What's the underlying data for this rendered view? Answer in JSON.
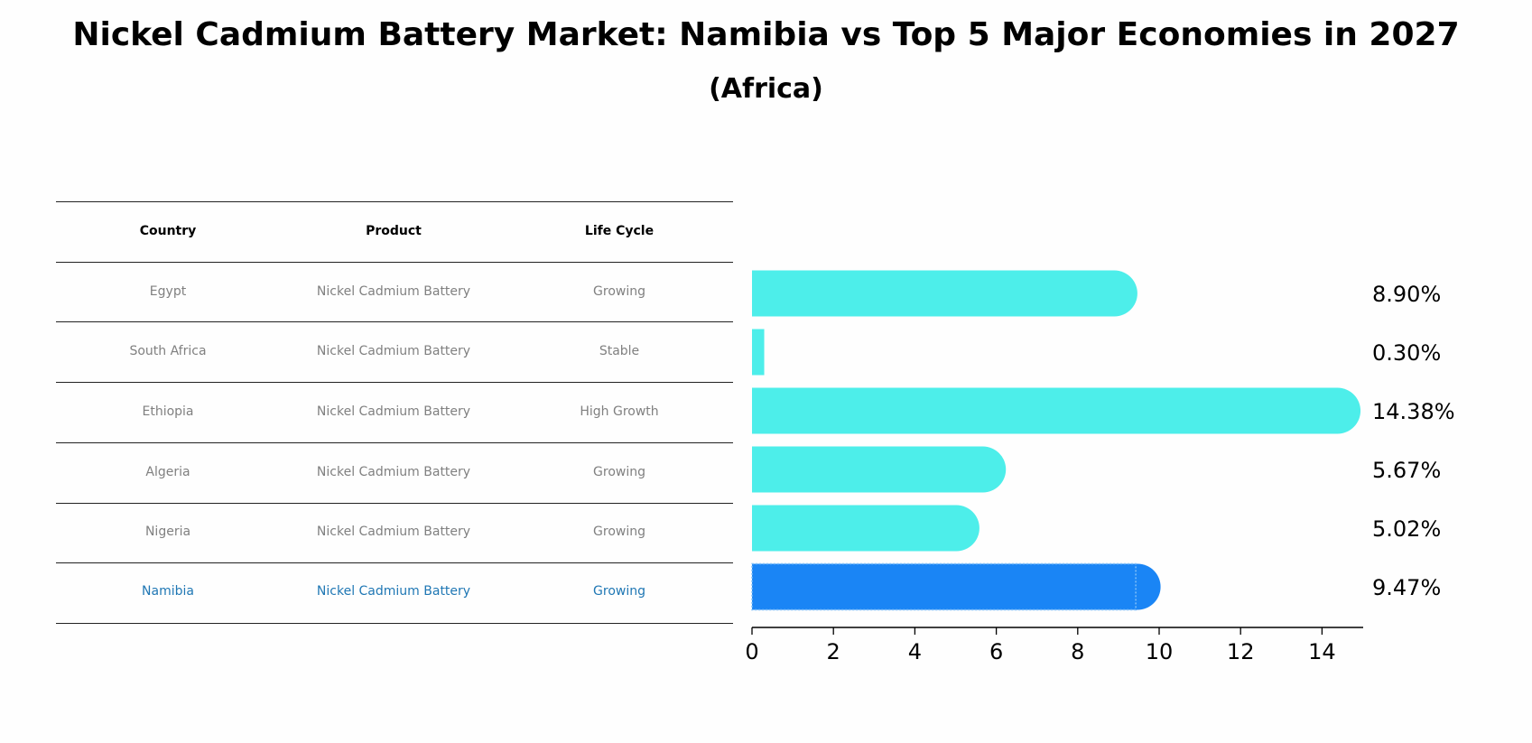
{
  "title": "Nickel Cadmium Battery Market: Namibia vs Top 5 Major Economies in 2027",
  "subtitle": "(Africa)",
  "table": {
    "headers": [
      "Country",
      "Product",
      "Life Cycle"
    ],
    "rows": [
      [
        "Egypt",
        "Nickel Cadmium Battery",
        "Growing"
      ],
      [
        "South Africa",
        "Nickel Cadmium Battery",
        "Stable"
      ],
      [
        "Ethiopia",
        "Nickel Cadmium Battery",
        "High Growth"
      ],
      [
        "Algeria",
        "Nickel Cadmium Battery",
        "Growing"
      ],
      [
        "Nigeria",
        "Nickel Cadmium Battery",
        "Growing"
      ],
      [
        "Namibia",
        "Nickel Cadmium Battery",
        "Growing"
      ]
    ],
    "highlight_row": 5,
    "text_color": "#808080",
    "highlight_color": "#1f77b4"
  },
  "chart_data": {
    "type": "bar",
    "orientation": "horizontal",
    "categories": [
      "Egypt",
      "South Africa",
      "Ethiopia",
      "Algeria",
      "Nigeria",
      "Namibia"
    ],
    "values": [
      8.9,
      0.3,
      14.38,
      5.67,
      5.02,
      9.47
    ],
    "value_labels": [
      "8.90%",
      "0.30%",
      "14.38%",
      "5.67%",
      "5.02%",
      "9.47%"
    ],
    "xlim": [
      0,
      15
    ],
    "xticks": [
      0,
      2,
      4,
      6,
      8,
      10,
      12,
      14
    ],
    "bar_color": "#4def eb",
    "highlight_color": "#1a85f5",
    "highlight_index": 5
  }
}
